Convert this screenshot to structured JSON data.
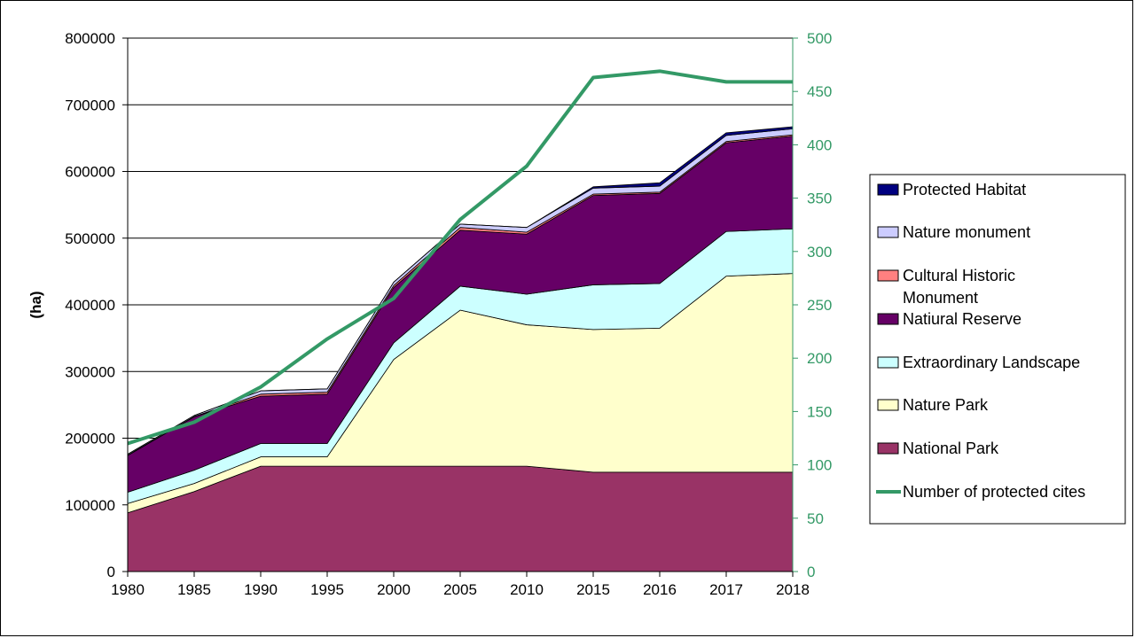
{
  "chart_data": {
    "type": "area",
    "stacked": true,
    "x": [
      "1980",
      "1985",
      "1990",
      "1995",
      "2000",
      "2005",
      "2010",
      "2015",
      "2016",
      "2017",
      "2018"
    ],
    "ylabel": "(ha)",
    "ylim": [
      0,
      800000
    ],
    "y_ticks": [
      "0",
      "100000",
      "200000",
      "300000",
      "400000",
      "500000",
      "600000",
      "700000",
      "800000"
    ],
    "y2lim": [
      0,
      500
    ],
    "y2_ticks": [
      "0",
      "50",
      "100",
      "150",
      "200",
      "250",
      "300",
      "350",
      "400",
      "450",
      "500"
    ],
    "grid": true,
    "legend_position": "right",
    "series": [
      {
        "name": "National Park",
        "color": "#993366",
        "values": [
          88000,
          120000,
          158000,
          158000,
          158000,
          158000,
          158000,
          149000,
          149000,
          149000,
          149000
        ]
      },
      {
        "name": "Nature Park",
        "color": "#FFFFCC",
        "values": [
          14000,
          12000,
          14000,
          14000,
          160000,
          234000,
          212000,
          214000,
          216000,
          294000,
          298000
        ]
      },
      {
        "name": "Extraordinary Landscape",
        "color": "#CCFFFF",
        "values": [
          17000,
          20000,
          20000,
          20000,
          25000,
          36000,
          46000,
          67000,
          67000,
          67000,
          67000
        ]
      },
      {
        "name": "Natiural Reserve",
        "color": "#660066",
        "values": [
          55000,
          80000,
          71000,
          74000,
          83000,
          84000,
          90000,
          134000,
          135000,
          133000,
          139000
        ]
      },
      {
        "name": "Cultural Historic Monument",
        "color": "#FF8080",
        "values": [
          500,
          500,
          3000,
          3000,
          3000,
          4000,
          3000,
          2000,
          2000,
          2000,
          2000
        ]
      },
      {
        "name": "Nature monument",
        "color": "#CCCCFF",
        "values": [
          1500,
          1500,
          5000,
          5000,
          5000,
          5000,
          7000,
          9000,
          9000,
          9000,
          9000
        ]
      },
      {
        "name": "Protected Habitat",
        "color": "#000080",
        "values": [
          0,
          0,
          0,
          0,
          0,
          0,
          0,
          2000,
          5000,
          4000,
          3000
        ]
      }
    ],
    "line_series": {
      "name": "Number of protected cites",
      "color": "#339966",
      "axis": "right",
      "values": [
        120,
        140,
        173,
        218,
        256,
        330,
        380,
        463,
        469,
        459,
        459
      ]
    },
    "legend_order": [
      "Protected Habitat",
      "Nature monument",
      "Cultural Historic Monument",
      "Natiural Reserve",
      "Extraordinary Landscape",
      "Nature Park",
      "National Park",
      "Number of protected cites"
    ]
  }
}
